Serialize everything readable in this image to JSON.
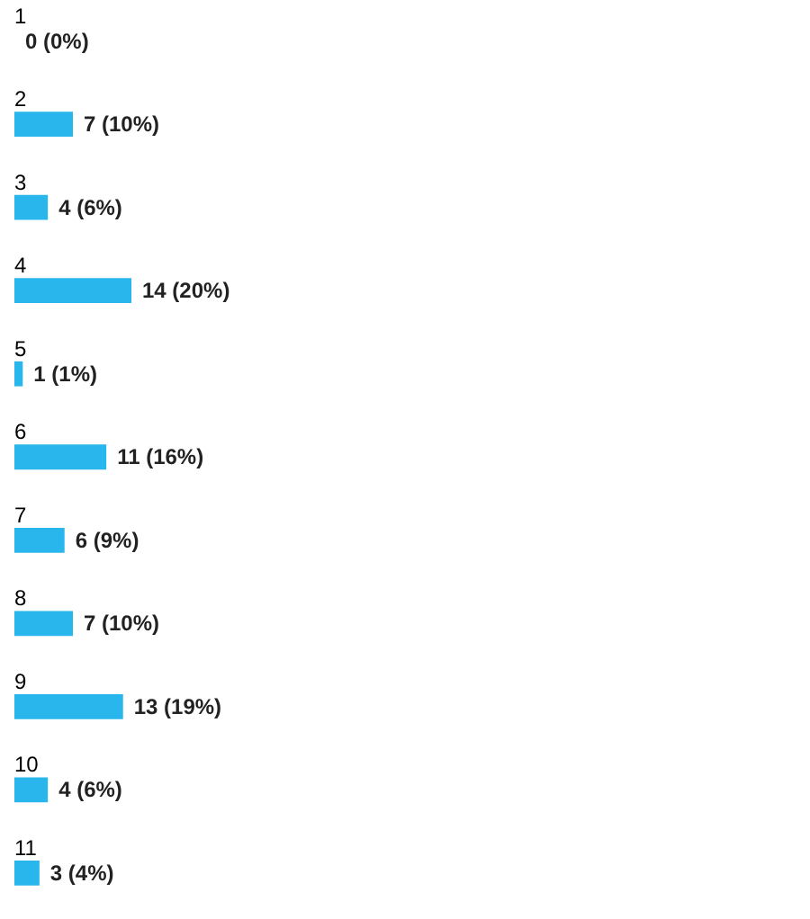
{
  "chart_data": {
    "type": "bar",
    "orientation": "horizontal",
    "categories": [
      "1",
      "2",
      "3",
      "4",
      "5",
      "6",
      "7",
      "8",
      "9",
      "10",
      "11"
    ],
    "values": [
      0,
      7,
      4,
      14,
      1,
      11,
      6,
      7,
      13,
      4,
      3
    ],
    "value_labels": [
      "0 (0%)",
      "7 (10%)",
      "4 (6%)",
      "14 (20%)",
      "1 (1%)",
      "11 (16%)",
      "6 (9%)",
      "7 (10%)",
      "13 (19%)",
      "4 (6%)",
      "3 (4%)"
    ],
    "color": "#29b6ec"
  }
}
